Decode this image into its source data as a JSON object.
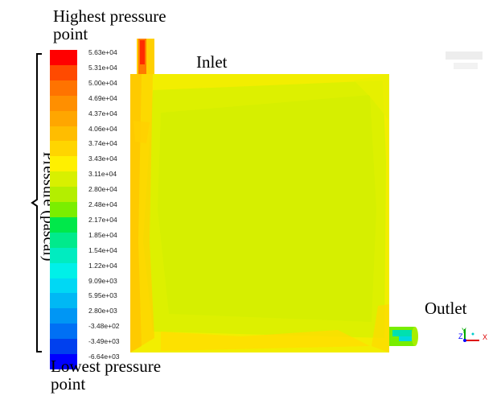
{
  "annotations": {
    "highest": "Highest pressure point",
    "lowest": "Lowest pressure point",
    "inlet": "Inlet",
    "outlet": "Outlet"
  },
  "axis_title": "Pressure (pascal)",
  "legend": {
    "levels": [
      {
        "label": "5.63e+04",
        "color": "#ff0000"
      },
      {
        "label": "5.31e+04",
        "color": "#ff4a00"
      },
      {
        "label": "5.00e+04",
        "color": "#ff7300"
      },
      {
        "label": "4.69e+04",
        "color": "#ff8f00"
      },
      {
        "label": "4.37e+04",
        "color": "#ffa600"
      },
      {
        "label": "4.06e+04",
        "color": "#ffbd00"
      },
      {
        "label": "3.74e+04",
        "color": "#ffd500"
      },
      {
        "label": "3.43e+04",
        "color": "#fff000"
      },
      {
        "label": "3.11e+04",
        "color": "#d8f000"
      },
      {
        "label": "2.80e+04",
        "color": "#b4ee00"
      },
      {
        "label": "2.48e+04",
        "color": "#7aee00"
      },
      {
        "label": "2.17e+04",
        "color": "#00e84a"
      },
      {
        "label": "1.85e+04",
        "color": "#00ea8c"
      },
      {
        "label": "1.54e+04",
        "color": "#00ecc0"
      },
      {
        "label": "1.22e+04",
        "color": "#00f0e8"
      },
      {
        "label": "9.09e+03",
        "color": "#00d8f4"
      },
      {
        "label": "5.95e+03",
        "color": "#00b8f4"
      },
      {
        "label": "2.80e+03",
        "color": "#0096f4"
      },
      {
        "label": "-3.48e+02",
        "color": "#0070f4"
      },
      {
        "label": "-3.49e+03",
        "color": "#0040ee"
      },
      {
        "label": "-6.64e+03",
        "color": "#0000ff"
      }
    ]
  },
  "triad": {
    "x": "X",
    "y": "Y",
    "z": "Z"
  },
  "colors": {
    "field_main": "#ddf000",
    "field_rim": "#f4ee00",
    "field_hot": "#ffd000",
    "inlet_hot": "#ff3a00",
    "outlet_cool": "#00e0b0"
  }
}
